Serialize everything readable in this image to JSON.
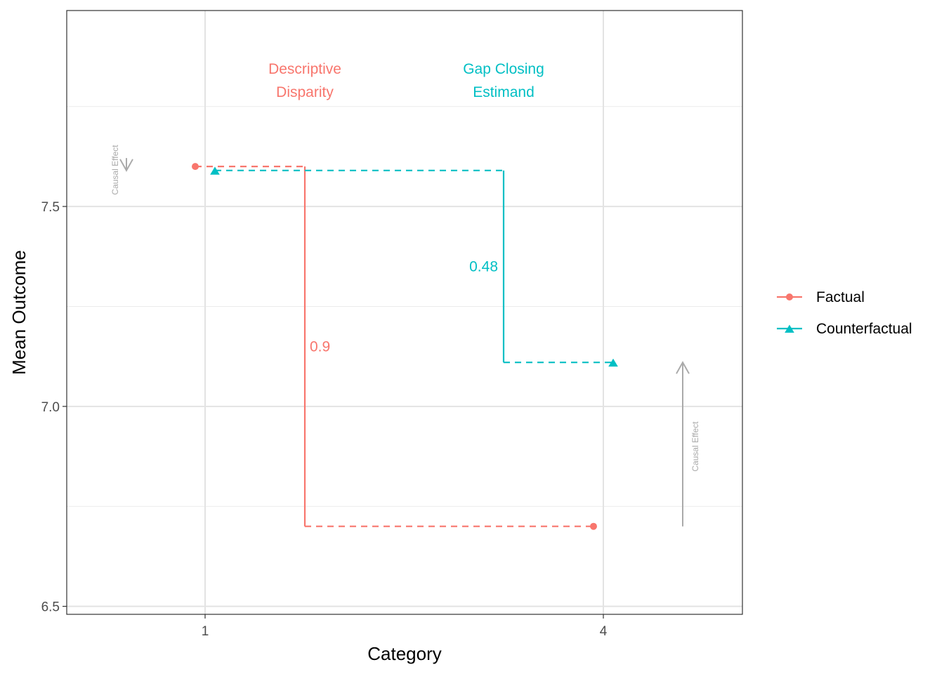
{
  "chart_data": {
    "type": "line",
    "xlabel": "Category",
    "ylabel": "Mean Outcome",
    "x_ticks": [
      "1",
      "4"
    ],
    "y_ticks": [
      "6.5",
      "7.0",
      "7.5"
    ],
    "ylim": [
      6.48,
      7.99
    ],
    "grid": true,
    "legend_position": "right",
    "series": [
      {
        "name": "Factual",
        "color": "#F8766D",
        "marker": "circle",
        "points": [
          {
            "x": "1",
            "y": 7.6
          },
          {
            "x": "4",
            "y": 6.7
          }
        ]
      },
      {
        "name": "Counterfactual",
        "color": "#00BFC4",
        "marker": "triangle",
        "points": [
          {
            "x": "1",
            "y": 7.59
          },
          {
            "x": "4",
            "y": 7.11
          }
        ]
      }
    ],
    "annotations": {
      "descriptive_disparity": {
        "label_line1": "Descriptive",
        "label_line2": "Disparity",
        "value": "0.9",
        "y_from": 7.6,
        "y_to": 6.7,
        "color": "#F8766D"
      },
      "gap_closing": {
        "label_line1": "Gap Closing",
        "label_line2": "Estimand",
        "value": "0.48",
        "y_from": 7.59,
        "y_to": 7.11,
        "color": "#00BFC4"
      },
      "causal_effect_1": {
        "label": "Causal Effect",
        "category": "1",
        "from_y": 7.6,
        "to_y": 7.59,
        "color": "#aaaaaa"
      },
      "causal_effect_4": {
        "label": "Causal Effect",
        "category": "4",
        "from_y": 6.7,
        "to_y": 7.11,
        "color": "#aaaaaa"
      }
    }
  }
}
